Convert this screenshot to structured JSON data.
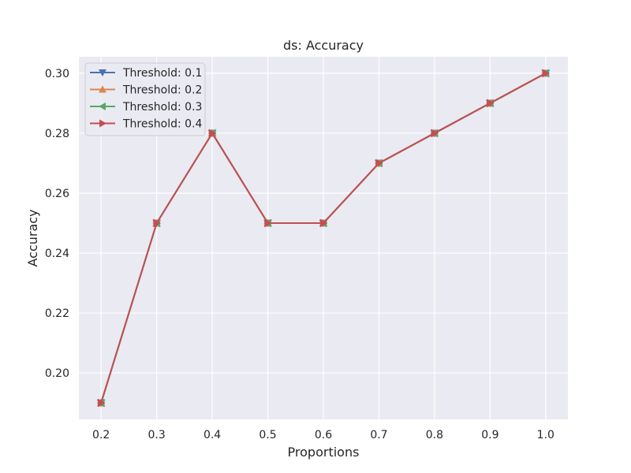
{
  "chart_data": {
    "type": "line",
    "title": "ds: Accuracy",
    "xlabel": "Proportions",
    "ylabel": "Accuracy",
    "x": [
      0.2,
      0.3,
      0.4,
      0.5,
      0.6,
      0.7,
      0.8,
      0.9,
      1.0
    ],
    "x_tick_labels": [
      "0.2",
      "0.3",
      "0.4",
      "0.5",
      "0.6",
      "0.7",
      "0.8",
      "0.9",
      "1.0"
    ],
    "y_ticks": [
      0.2,
      0.22,
      0.24,
      0.26,
      0.28,
      0.3
    ],
    "y_tick_labels": [
      "0.20",
      "0.22",
      "0.24",
      "0.26",
      "0.28",
      "0.30"
    ],
    "xlim": [
      0.16,
      1.04
    ],
    "ylim": [
      0.1845,
      0.3055
    ],
    "grid": true,
    "legend_position": "top-left",
    "series": [
      {
        "name": "Threshold: 0.1",
        "color": "#4c72b0",
        "marker": "triangle-down",
        "values": [
          0.19,
          0.25,
          0.28,
          0.25,
          0.25,
          0.27,
          0.28,
          0.29,
          0.3
        ]
      },
      {
        "name": "Threshold: 0.2",
        "color": "#dd8452",
        "marker": "triangle-up",
        "values": [
          0.19,
          0.25,
          0.28,
          0.25,
          0.25,
          0.27,
          0.28,
          0.29,
          0.3
        ]
      },
      {
        "name": "Threshold: 0.3",
        "color": "#55a868",
        "marker": "triangle-left",
        "values": [
          0.19,
          0.25,
          0.28,
          0.25,
          0.25,
          0.27,
          0.28,
          0.29,
          0.3
        ]
      },
      {
        "name": "Threshold: 0.4",
        "color": "#c44e52",
        "marker": "triangle-right",
        "values": [
          0.19,
          0.25,
          0.28,
          0.25,
          0.25,
          0.27,
          0.28,
          0.29,
          0.3
        ]
      }
    ]
  }
}
